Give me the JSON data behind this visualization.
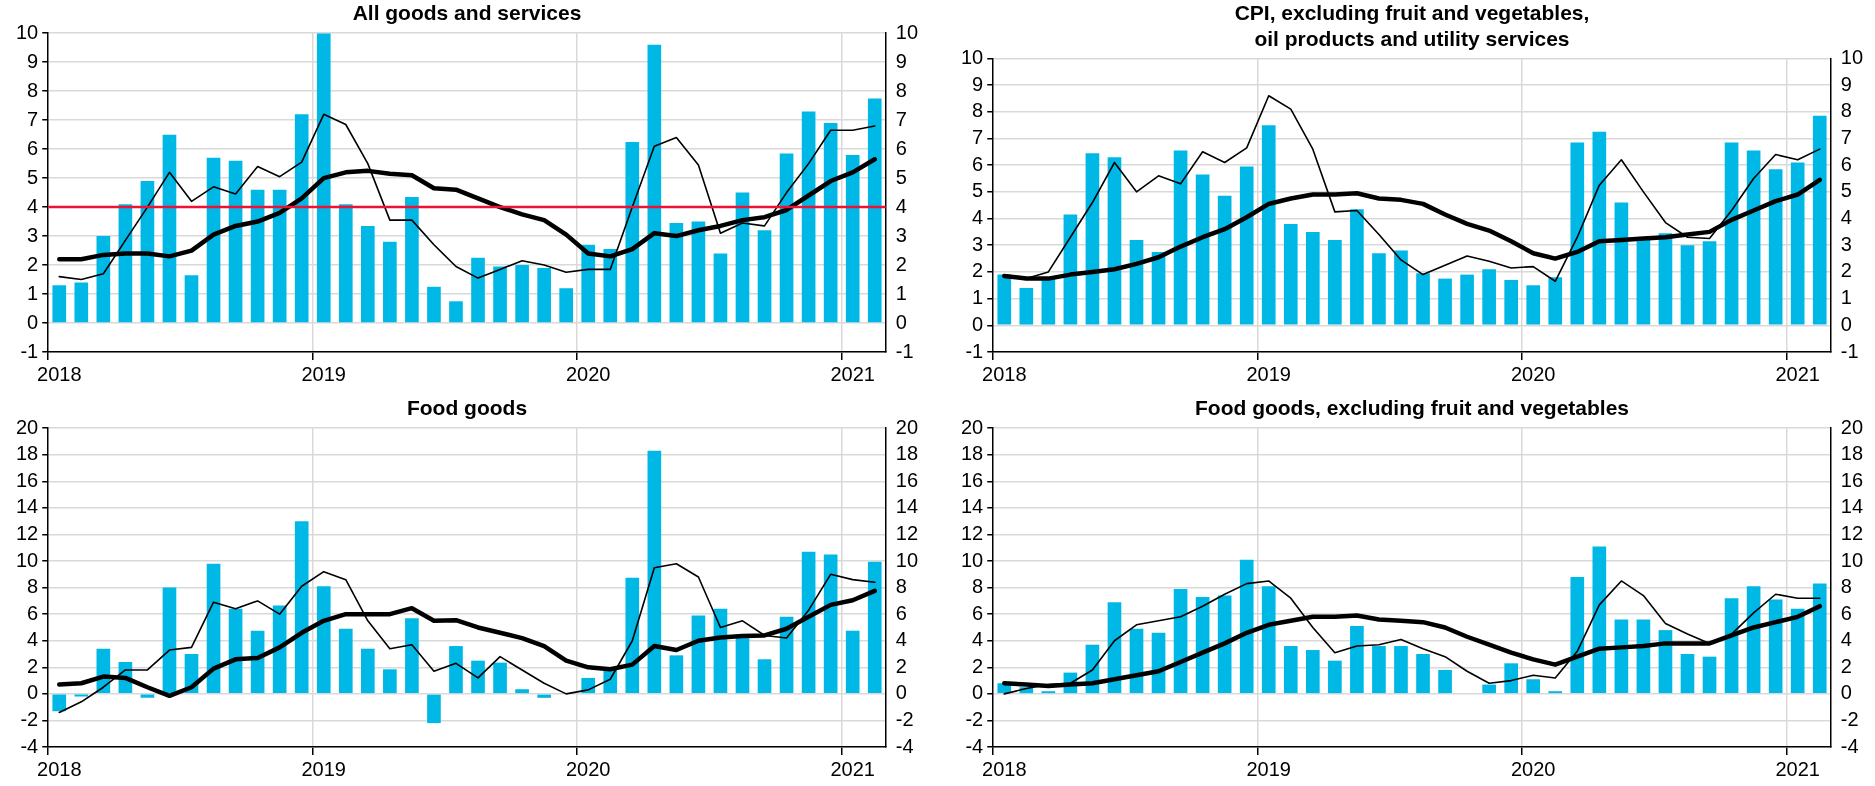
{
  "chart_data": [
    {
      "type": "bar",
      "title": "All goods and services",
      "categories": [
        "2018",
        null,
        null,
        null,
        null,
        null,
        null,
        null,
        null,
        null,
        null,
        null,
        "2019",
        null,
        null,
        null,
        null,
        null,
        null,
        null,
        null,
        null,
        null,
        null,
        "2020",
        null,
        null,
        null,
        null,
        null,
        null,
        null,
        null,
        null,
        null,
        null,
        "2021",
        null
      ],
      "series": [
        {
          "color": "#00b8e6",
          "values": [
            1.3,
            1.4,
            3.0,
            4.1,
            4.9,
            6.5,
            1.65,
            5.7,
            5.6,
            4.6,
            4.6,
            7.2,
            10.0,
            4.1,
            3.35,
            2.8,
            4.35,
            1.25,
            0.75,
            2.25,
            1.95,
            2.0,
            1.9,
            1.2,
            2.7,
            2.55,
            6.25,
            9.6,
            3.45,
            3.5,
            2.4,
            4.5,
            3.2,
            5.85,
            7.3,
            6.9,
            5.8,
            7.75
          ]
        },
        {
          "type": "line",
          "color": "#000000",
          "values": [
            1.6,
            1.5,
            1.7,
            2.85,
            4.0,
            5.2,
            4.2,
            4.7,
            4.45,
            5.4,
            5.05,
            5.55,
            7.2,
            6.85,
            5.5,
            3.55,
            3.55,
            2.7,
            1.95,
            1.55,
            1.85,
            2.15,
            2.0,
            1.75,
            1.85,
            1.85,
            4.0,
            6.1,
            6.4,
            5.45,
            3.1,
            3.45,
            3.35,
            4.5,
            5.5,
            6.65,
            6.65,
            6.8
          ]
        },
        {
          "type": "line",
          "color": "#000000",
          "values": [
            2.2,
            2.2,
            2.35,
            2.4,
            2.4,
            2.3,
            2.5,
            3.05,
            3.35,
            3.5,
            3.8,
            4.3,
            5.0,
            5.2,
            5.25,
            5.15,
            5.1,
            4.65,
            4.6,
            4.3,
            4.0,
            3.75,
            3.55,
            3.05,
            2.4,
            2.3,
            2.55,
            3.1,
            3.0,
            3.2,
            3.35,
            3.55,
            3.65,
            3.9,
            4.4,
            4.9,
            5.2,
            5.65
          ]
        }
      ],
      "ylim": [
        -1,
        10
      ],
      "yticks": [
        -1,
        0,
        1,
        2,
        3,
        4,
        5,
        6,
        7,
        8,
        9,
        10
      ],
      "y2lim": [
        -1,
        10
      ],
      "y2ticks": [
        -1,
        0,
        1,
        2,
        3,
        4,
        5,
        6,
        7,
        8,
        9,
        10
      ],
      "ref_lines": [
        {
          "axis": "y",
          "value": 4,
          "color": "#ee1133"
        }
      ],
      "grid": true,
      "legend": false,
      "marker": "none",
      "line_style": "solid"
    },
    {
      "type": "bar",
      "title": "CPI, excluding fruit and vegetables, oil products and utility services",
      "categories": [
        "2018",
        null,
        null,
        null,
        null,
        null,
        null,
        null,
        null,
        null,
        null,
        null,
        "2019",
        null,
        null,
        null,
        null,
        null,
        null,
        null,
        null,
        null,
        null,
        null,
        "2020",
        null,
        null,
        null,
        null,
        null,
        null,
        null,
        null,
        null,
        null,
        null,
        "2021",
        null
      ],
      "series": [
        {
          "color": "#00b8e6",
          "values": [
            1.9,
            1.4,
            1.75,
            4.15,
            6.45,
            6.3,
            3.2,
            2.75,
            6.55,
            5.65,
            4.85,
            5.95,
            7.5,
            3.8,
            3.5,
            3.2,
            4.35,
            2.7,
            2.8,
            1.95,
            1.75,
            1.9,
            2.1,
            1.7,
            1.5,
            1.8,
            6.85,
            7.25,
            4.6,
            3.2,
            3.45,
            3.0,
            3.15,
            6.85,
            6.55,
            5.85,
            6.1,
            7.85
          ]
        },
        {
          "type": "line",
          "color": "#000000",
          "values": [
            1.8,
            1.75,
            2.0,
            3.3,
            4.6,
            6.1,
            5.0,
            5.6,
            5.3,
            6.5,
            6.1,
            6.65,
            8.6,
            8.1,
            6.6,
            4.25,
            4.3,
            3.4,
            2.45,
            1.9,
            2.25,
            2.6,
            2.4,
            2.15,
            2.2,
            1.65,
            3.3,
            5.25,
            6.2,
            5.0,
            3.85,
            3.3,
            3.25,
            4.3,
            5.5,
            6.4,
            6.2,
            6.6
          ]
        },
        {
          "type": "line",
          "color": "#000000",
          "values": [
            1.85,
            1.75,
            1.75,
            1.9,
            2.0,
            2.1,
            2.3,
            2.55,
            2.95,
            3.3,
            3.6,
            4.05,
            4.55,
            4.75,
            4.9,
            4.9,
            4.95,
            4.75,
            4.7,
            4.55,
            4.15,
            3.8,
            3.55,
            3.15,
            2.7,
            2.5,
            2.75,
            3.15,
            3.2,
            3.25,
            3.3,
            3.4,
            3.5,
            3.95,
            4.3,
            4.65,
            4.9,
            5.45
          ]
        }
      ],
      "ylim": [
        -1,
        10
      ],
      "yticks": [
        -1,
        0,
        1,
        2,
        3,
        4,
        5,
        6,
        7,
        8,
        9,
        10
      ],
      "y2lim": [
        -1,
        10
      ],
      "y2ticks": [
        -1,
        0,
        1,
        2,
        3,
        4,
        5,
        6,
        7,
        8,
        9,
        10
      ],
      "grid": true,
      "legend": false,
      "marker": "none",
      "line_style": "solid"
    },
    {
      "type": "bar",
      "title": "Food goods",
      "categories": [
        "2018",
        null,
        null,
        null,
        null,
        null,
        null,
        null,
        null,
        null,
        null,
        null,
        "2019",
        null,
        null,
        null,
        null,
        null,
        null,
        null,
        null,
        null,
        null,
        null,
        "2020",
        null,
        null,
        null,
        null,
        null,
        null,
        null,
        null,
        null,
        null,
        null,
        "2021",
        null
      ],
      "series": [
        {
          "color": "#00b8e6",
          "values": [
            -1.3,
            -0.2,
            3.4,
            2.4,
            -0.3,
            8.0,
            3.0,
            9.8,
            6.4,
            4.75,
            6.65,
            13.0,
            8.1,
            4.9,
            3.4,
            1.85,
            5.7,
            -2.2,
            3.6,
            2.5,
            2.35,
            0.35,
            -0.3,
            0,
            1.2,
            2.0,
            8.75,
            18.3,
            2.9,
            5.9,
            6.4,
            4.3,
            2.6,
            5.8,
            10.7,
            10.5,
            4.75,
            9.95
          ]
        },
        {
          "type": "line",
          "color": "#000000",
          "values": [
            -1.4,
            -0.6,
            0.5,
            1.8,
            1.8,
            3.3,
            3.5,
            6.9,
            6.4,
            7.0,
            6.0,
            8.1,
            9.2,
            8.6,
            5.5,
            3.4,
            3.7,
            1.7,
            2.3,
            1.2,
            2.8,
            1.8,
            0.8,
            0.0,
            0.3,
            1.1,
            4.0,
            9.5,
            9.8,
            8.8,
            5.0,
            5.5,
            4.4,
            4.2,
            6.3,
            9.0,
            8.6,
            8.4
          ]
        },
        {
          "type": "line",
          "color": "#000000",
          "values": [
            0.7,
            0.8,
            1.3,
            1.2,
            0.5,
            -0.15,
            0.5,
            1.9,
            2.6,
            2.7,
            3.5,
            4.6,
            5.5,
            6.0,
            6.0,
            6.0,
            6.45,
            5.5,
            5.55,
            5.0,
            4.6,
            4.2,
            3.6,
            2.5,
            2.0,
            1.85,
            2.2,
            3.6,
            3.3,
            4.0,
            4.25,
            4.35,
            4.4,
            4.9,
            5.8,
            6.7,
            7.05,
            7.75
          ]
        }
      ],
      "ylim": [
        -4,
        20
      ],
      "yticks": [
        -4,
        -2,
        0,
        2,
        4,
        6,
        8,
        10,
        12,
        14,
        16,
        18,
        20
      ],
      "y2lim": [
        -4,
        20
      ],
      "y2ticks": [
        -4,
        -2,
        0,
        2,
        4,
        6,
        8,
        10,
        12,
        14,
        16,
        18,
        20
      ],
      "grid": true,
      "legend": false,
      "marker": "none",
      "line_style": "solid"
    },
    {
      "type": "bar",
      "title": "Food goods, excluding fruit and vegetables",
      "categories": [
        "2018",
        null,
        null,
        null,
        null,
        null,
        null,
        null,
        null,
        null,
        null,
        null,
        "2019",
        null,
        null,
        null,
        null,
        null,
        null,
        null,
        null,
        null,
        null,
        null,
        "2020",
        null,
        null,
        null,
        null,
        null,
        null,
        null,
        null,
        null,
        null,
        null,
        "2021",
        null
      ],
      "series": [
        {
          "color": "#00b8e6",
          "values": [
            0.8,
            0.5,
            0.2,
            1.6,
            3.7,
            6.9,
            4.9,
            4.6,
            7.9,
            7.3,
            7.4,
            10.1,
            8.1,
            3.6,
            3.3,
            2.5,
            5.1,
            3.6,
            3.6,
            3.0,
            1.8,
            0,
            0.7,
            2.3,
            1.1,
            0.2,
            8.8,
            11.1,
            5.6,
            5.6,
            4.8,
            3.0,
            2.8,
            7.2,
            8.1,
            7.1,
            6.4,
            8.3
          ]
        },
        {
          "type": "line",
          "color": "#000000",
          "values": [
            0.0,
            0.4,
            0.7,
            0.8,
            1.8,
            4.0,
            5.2,
            5.5,
            5.8,
            6.6,
            7.5,
            8.3,
            8.5,
            7.2,
            5.0,
            3.1,
            3.6,
            3.7,
            4.1,
            3.4,
            2.8,
            1.7,
            0.8,
            1.0,
            1.4,
            1.2,
            3.2,
            6.7,
            8.5,
            7.4,
            5.3,
            4.5,
            3.8,
            4.5,
            6.1,
            7.5,
            7.2,
            7.2
          ]
        },
        {
          "type": "line",
          "color": "#000000",
          "values": [
            0.8,
            0.7,
            0.6,
            0.7,
            0.8,
            1.1,
            1.4,
            1.7,
            2.4,
            3.1,
            3.8,
            4.6,
            5.2,
            5.5,
            5.8,
            5.8,
            5.9,
            5.6,
            5.5,
            5.4,
            5.0,
            4.3,
            3.7,
            3.1,
            2.6,
            2.2,
            2.8,
            3.4,
            3.5,
            3.6,
            3.8,
            3.8,
            3.8,
            4.4,
            5.0,
            5.4,
            5.8,
            6.6
          ]
        }
      ],
      "ylim": [
        -4,
        20
      ],
      "yticks": [
        -4,
        -2,
        0,
        2,
        4,
        6,
        8,
        10,
        12,
        14,
        16,
        18,
        20
      ],
      "y2lim": [
        -4,
        20
      ],
      "y2ticks": [
        -4,
        -2,
        0,
        2,
        4,
        6,
        8,
        10,
        12,
        14,
        16,
        18,
        20
      ],
      "grid": true,
      "legend": false,
      "marker": "none",
      "line_style": "solid"
    }
  ]
}
